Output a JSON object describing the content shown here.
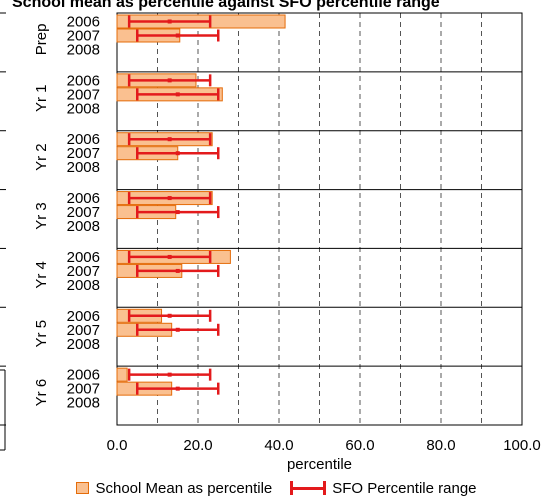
{
  "chart_data": {
    "type": "bar",
    "orientation": "horizontal",
    "title": "School mean as percentile against SFO percentile range",
    "xlabel": "percentile",
    "xlim": [
      0,
      100
    ],
    "x_ticks": [
      "0.0",
      "20.0",
      "40.0",
      "60.0",
      "80.0",
      "100.0"
    ],
    "grid": "vertical dashed gridlines every 10",
    "legend_position": "bottom",
    "groups": [
      {
        "label": "Prep",
        "years": [
          "2006",
          "2007",
          "2008"
        ],
        "mean": [
          41.5,
          15.5,
          null
        ],
        "range_low": [
          3,
          5,
          null
        ],
        "range_high": [
          23,
          25,
          null
        ],
        "range_mid": [
          13,
          15,
          null
        ]
      },
      {
        "label": "Yr 1",
        "years": [
          "2006",
          "2007",
          "2008"
        ],
        "mean": [
          19.5,
          26,
          null
        ],
        "range_low": [
          3,
          5,
          null
        ],
        "range_high": [
          23,
          25,
          null
        ],
        "range_mid": [
          13,
          15,
          null
        ]
      },
      {
        "label": "Yr 2",
        "years": [
          "2006",
          "2007",
          "2008"
        ],
        "mean": [
          23.5,
          15,
          null
        ],
        "range_low": [
          3,
          5,
          null
        ],
        "range_high": [
          23,
          25,
          null
        ],
        "range_mid": [
          13,
          15,
          null
        ]
      },
      {
        "label": "Yr 3",
        "years": [
          "2006",
          "2007",
          "2008"
        ],
        "mean": [
          23.5,
          14.5,
          null
        ],
        "range_low": [
          3,
          5,
          null
        ],
        "range_high": [
          23,
          25,
          null
        ],
        "range_mid": [
          13,
          15,
          null
        ]
      },
      {
        "label": "Yr 4",
        "years": [
          "2006",
          "2007",
          "2008"
        ],
        "mean": [
          28,
          16,
          null
        ],
        "range_low": [
          3,
          5,
          null
        ],
        "range_high": [
          23,
          25,
          null
        ],
        "range_mid": [
          13,
          15,
          null
        ]
      },
      {
        "label": "Yr 5",
        "years": [
          "2006",
          "2007",
          "2008"
        ],
        "mean": [
          11,
          13.5,
          null
        ],
        "range_low": [
          3,
          5,
          null
        ],
        "range_high": [
          23,
          25,
          null
        ],
        "range_mid": [
          13,
          15,
          null
        ]
      },
      {
        "label": "Yr 6",
        "years": [
          "2006",
          "2007",
          "2008"
        ],
        "mean": [
          2.5,
          13.5,
          null
        ],
        "range_low": [
          3,
          5,
          null
        ],
        "range_high": [
          23,
          25,
          null
        ],
        "range_mid": [
          13,
          15,
          null
        ]
      }
    ],
    "series": [
      {
        "name": "School Mean as percentile",
        "color": "#fac090",
        "edge_color": "#e46c0a"
      },
      {
        "name": "SFO Percentile range",
        "color": "#e31a1c"
      }
    ]
  }
}
